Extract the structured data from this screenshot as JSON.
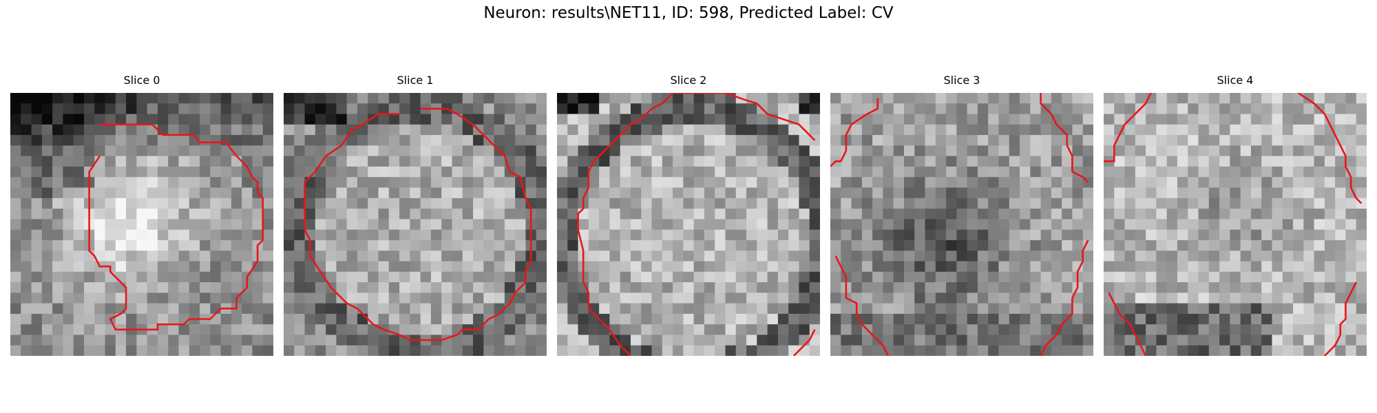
{
  "figure": {
    "title": "Neuron: results\\NET11, ID: 598, Predicted Label: CV",
    "contour_color": "#e8161a"
  },
  "panels": [
    {
      "title": "Slice 0",
      "seed": 11,
      "pattern": "blob_top_left"
    },
    {
      "title": "Slice 1",
      "seed": 23,
      "pattern": "ring"
    },
    {
      "title": "Slice 2",
      "seed": 37,
      "pattern": "ring_large"
    },
    {
      "title": "Slice 3",
      "seed": 51,
      "pattern": "mottled_dark_center"
    },
    {
      "title": "Slice 4",
      "seed": 67,
      "pattern": "mottled_bright"
    }
  ]
}
